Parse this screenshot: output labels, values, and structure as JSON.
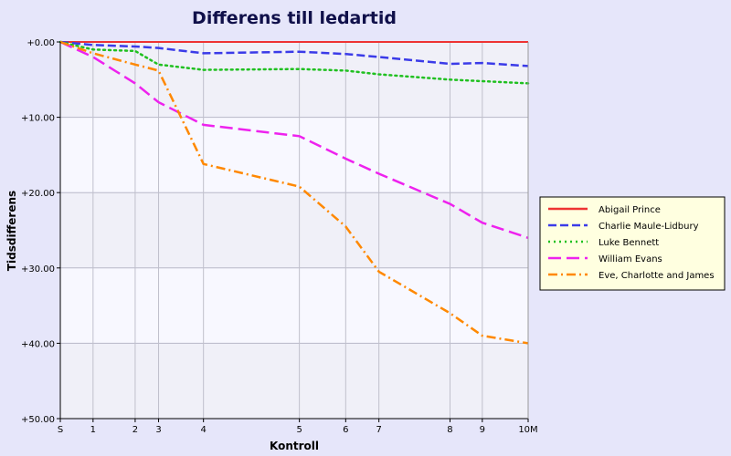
{
  "chart_data": {
    "type": "line",
    "title": "Differens till ledartid",
    "xlabel": "Kontroll",
    "ylabel": "Tidsdifferens",
    "x_positions": [
      0,
      7.0,
      16.0,
      21.0,
      30.6,
      51.1,
      61.0,
      68.1,
      83.3,
      90.2,
      100
    ],
    "x_tick_labels": [
      "S",
      "1",
      "2",
      "3",
      "4",
      "5",
      "6",
      "7",
      "8",
      "9",
      "10M"
    ],
    "ylim": [
      0,
      50
    ],
    "y_ticks": [
      0,
      10,
      20,
      30,
      40,
      50
    ],
    "y_tick_labels": [
      "+0.00",
      "+10.00",
      "+20.00",
      "+30.00",
      "+40.00",
      "+50.00"
    ],
    "y_inverted": true,
    "grid": true,
    "legend_position": "right",
    "series": [
      {
        "name": "Abigail Prince",
        "color": "#ee3333",
        "dash": "solid",
        "values": [
          0,
          0,
          0,
          0,
          0,
          0,
          0,
          0,
          0,
          0,
          0
        ]
      },
      {
        "name": "Charlie Maule-Lidbury",
        "color": "#3b3be8",
        "dash": "dashed",
        "values": [
          0,
          0.4,
          0.6,
          0.8,
          1.5,
          1.3,
          1.6,
          2.0,
          2.9,
          2.8,
          3.2
        ]
      },
      {
        "name": "Luke Bennett",
        "color": "#20c020",
        "dash": "dotted",
        "values": [
          0,
          1.0,
          1.2,
          3.0,
          3.7,
          3.6,
          3.8,
          4.3,
          5.0,
          5.2,
          5.5
        ]
      },
      {
        "name": "William Evans",
        "color": "#ee22ee",
        "dash": "longdash",
        "values": [
          0,
          2.0,
          5.5,
          8.0,
          11.0,
          12.5,
          15.5,
          17.5,
          21.5,
          24.0,
          26.0
        ]
      },
      {
        "name": "Eve, Charlotte and James",
        "color": "#ff8800",
        "dash": "dashdot",
        "values": [
          0,
          1.5,
          3.0,
          3.8,
          16.2,
          19.2,
          24.5,
          30.5,
          36.0,
          39.0,
          40.0
        ]
      }
    ]
  }
}
